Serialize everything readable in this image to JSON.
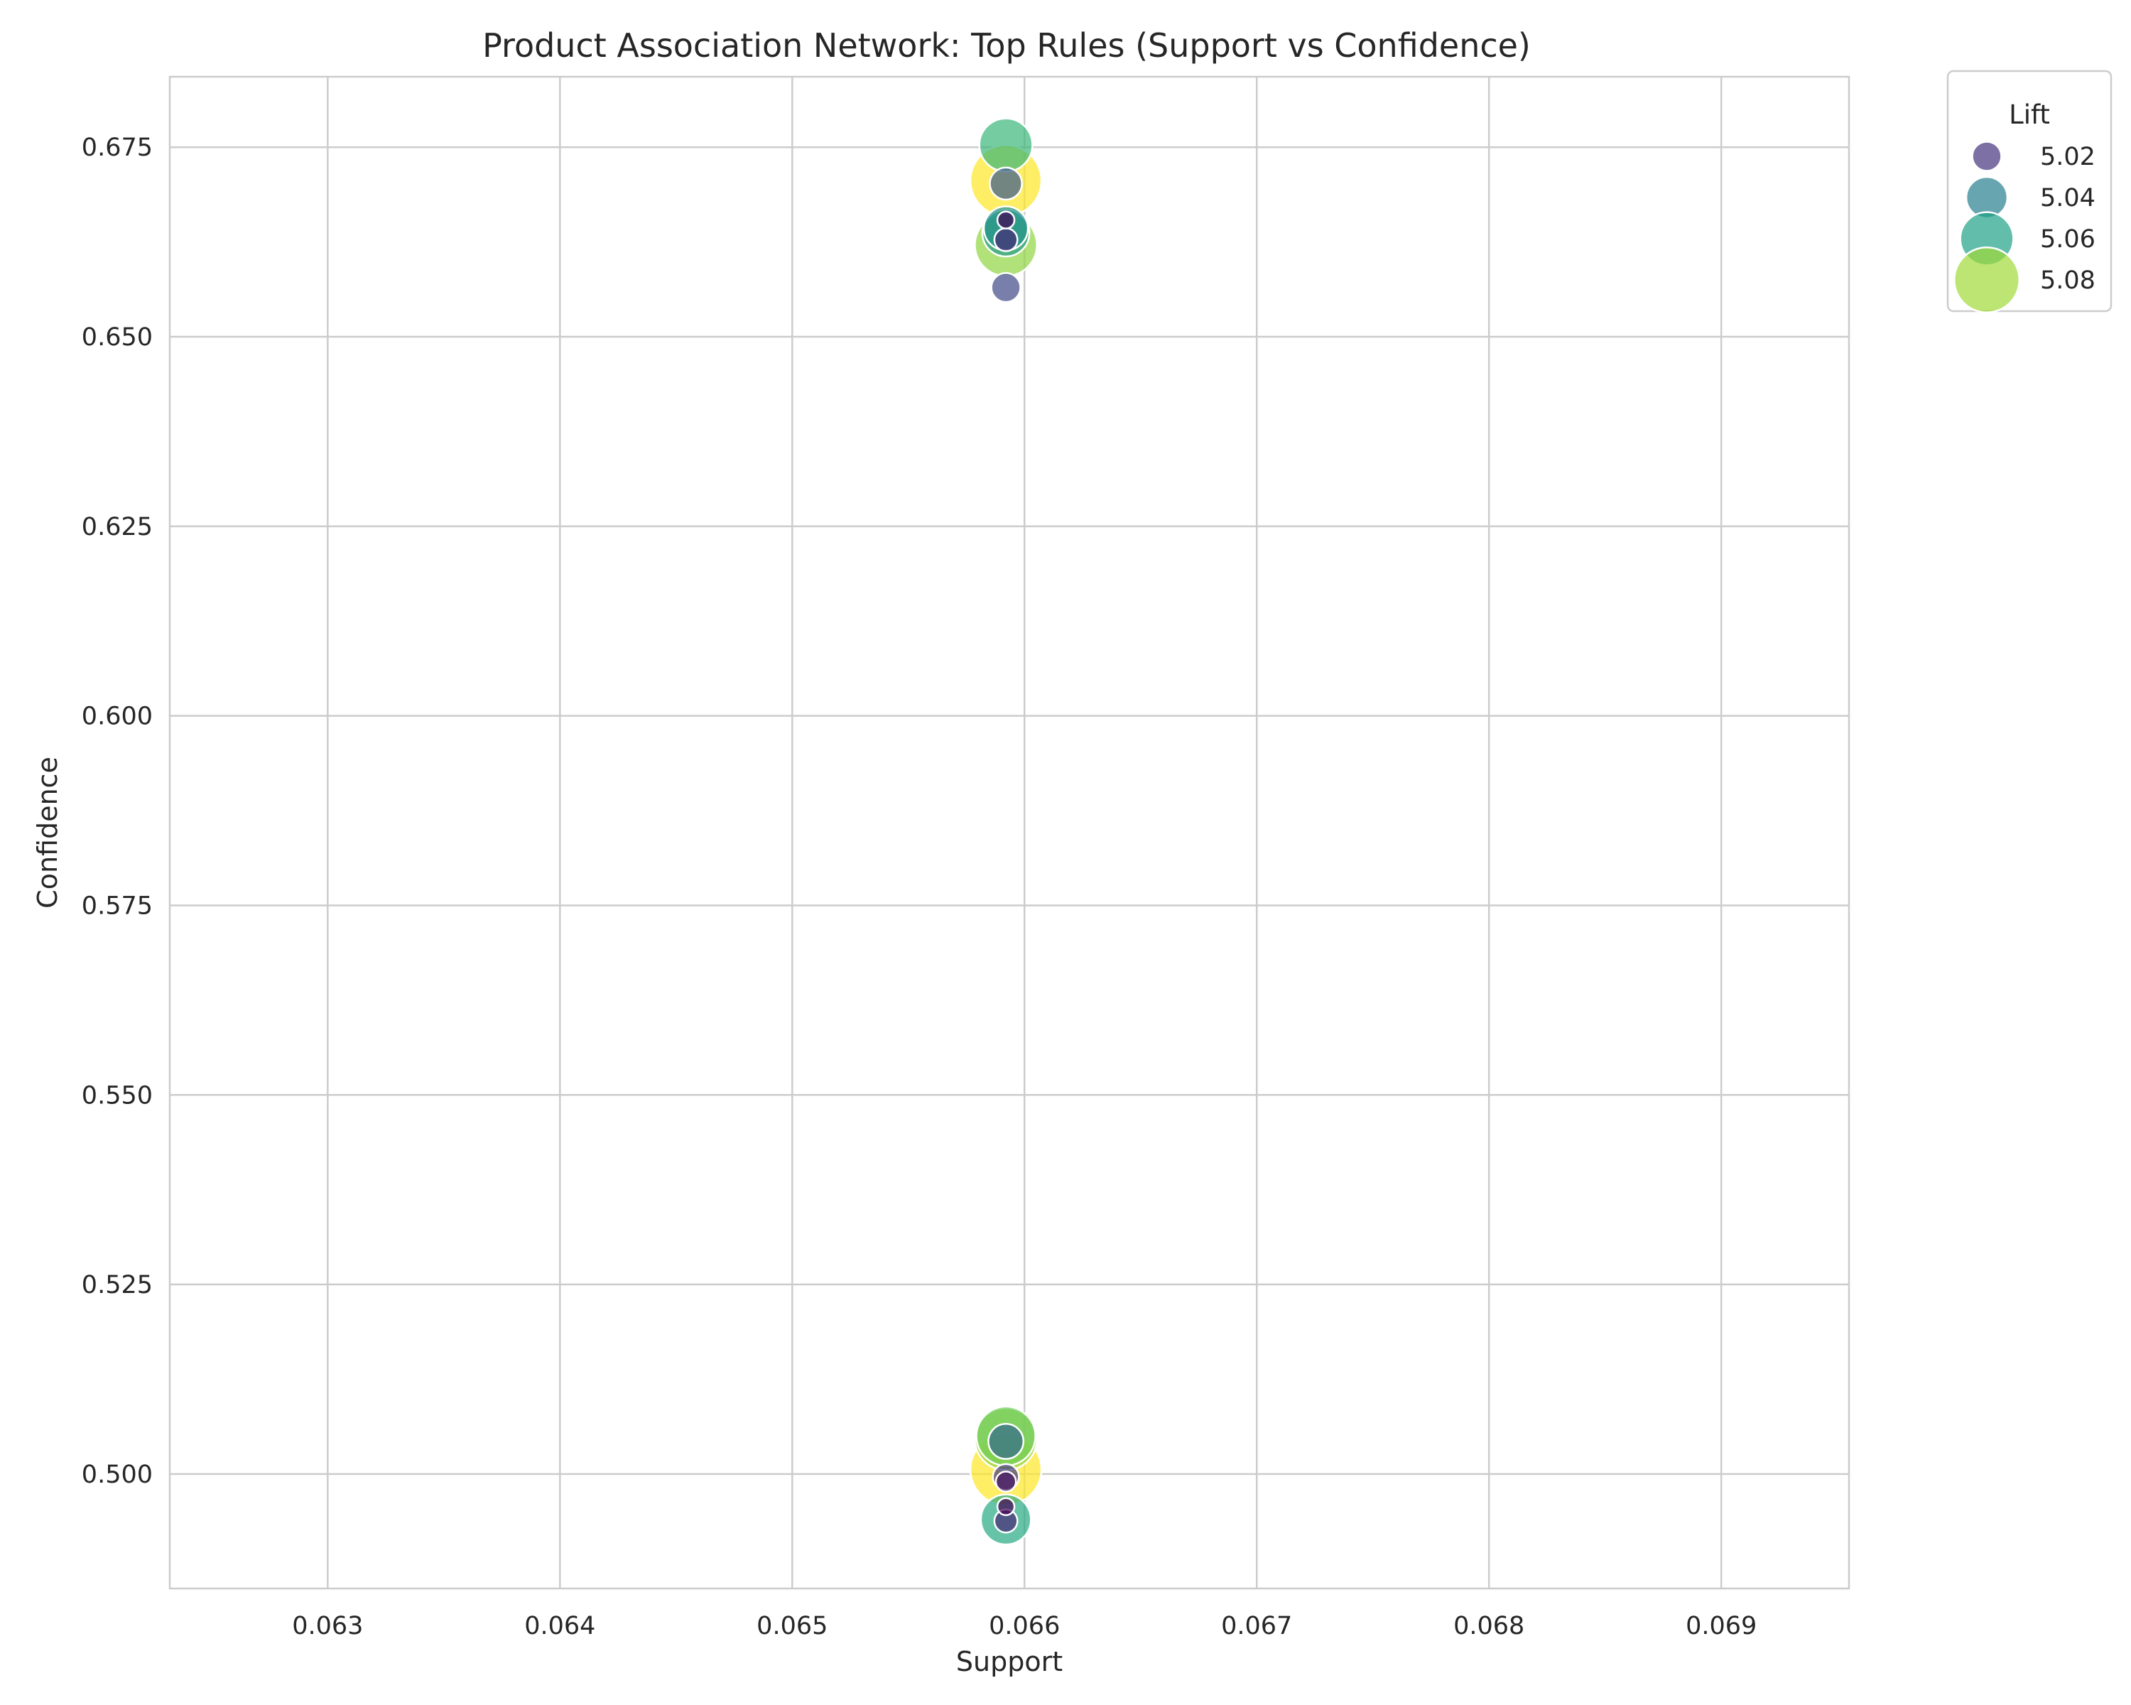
{
  "chart_data": {
    "type": "scatter",
    "title": "Product Association Network: Top Rules (Support vs Confidence)",
    "xlabel": "Support",
    "ylabel": "Confidence",
    "xlim": [
      0.06232,
      0.06955
    ],
    "ylim": [
      0.4849,
      0.6843
    ],
    "xticks": [
      0.063,
      0.064,
      0.065,
      0.066,
      0.067,
      0.068,
      0.069
    ],
    "xtick_labels": [
      "0.063",
      "0.064",
      "0.065",
      "0.066",
      "0.067",
      "0.068",
      "0.069"
    ],
    "yticks": [
      0.5,
      0.525,
      0.55,
      0.575,
      0.6,
      0.625,
      0.65,
      0.675
    ],
    "ytick_labels": [
      "0.500",
      "0.525",
      "0.550",
      "0.575",
      "0.600",
      "0.625",
      "0.650",
      "0.675"
    ],
    "grid": true,
    "colormap": "viridis",
    "color_by": "Lift",
    "size_by": "Lift",
    "lift_range": [
      5.0,
      5.09
    ],
    "legend": {
      "title": "Lift",
      "position": "upper right, outside plot",
      "entries": [
        {
          "label": "5.02",
          "lift": 5.02,
          "color": "#46337e"
        },
        {
          "label": "5.04",
          "lift": 5.04,
          "color": "#277f8e"
        },
        {
          "label": "5.06",
          "lift": 5.06,
          "color": "#1fa187"
        },
        {
          "label": "5.08",
          "lift": 5.08,
          "color": "#a0da39"
        }
      ]
    },
    "points": [
      {
        "support": 0.06592,
        "confidence": 0.6706,
        "lift": 5.09
      },
      {
        "support": 0.06592,
        "confidence": 0.6753,
        "lift": 5.06
      },
      {
        "support": 0.06592,
        "confidence": 0.6702,
        "lift": 5.025
      },
      {
        "support": 0.06592,
        "confidence": 0.6643,
        "lift": 5.045
      },
      {
        "support": 0.06592,
        "confidence": 0.6621,
        "lift": 5.075
      },
      {
        "support": 0.06592,
        "confidence": 0.6637,
        "lift": 5.05
      },
      {
        "support": 0.06592,
        "confidence": 0.6628,
        "lift": 5.01
      },
      {
        "support": 0.06592,
        "confidence": 0.6654,
        "lift": 5.0
      },
      {
        "support": 0.06592,
        "confidence": 0.6565,
        "lift": 5.02
      },
      {
        "support": 0.06592,
        "confidence": 0.5006,
        "lift": 5.09
      },
      {
        "support": 0.06592,
        "confidence": 0.505,
        "lift": 5.07
      },
      {
        "support": 0.06592,
        "confidence": 0.5046,
        "lift": 5.075
      },
      {
        "support": 0.06592,
        "confidence": 0.5043,
        "lift": 5.03
      },
      {
        "support": 0.06592,
        "confidence": 0.4996,
        "lift": 5.015
      },
      {
        "support": 0.06592,
        "confidence": 0.499,
        "lift": 5.005
      },
      {
        "support": 0.06592,
        "confidence": 0.494,
        "lift": 5.055
      },
      {
        "support": 0.06592,
        "confidence": 0.4938,
        "lift": 5.01
      },
      {
        "support": 0.06592,
        "confidence": 0.4957,
        "lift": 5.0
      }
    ]
  }
}
